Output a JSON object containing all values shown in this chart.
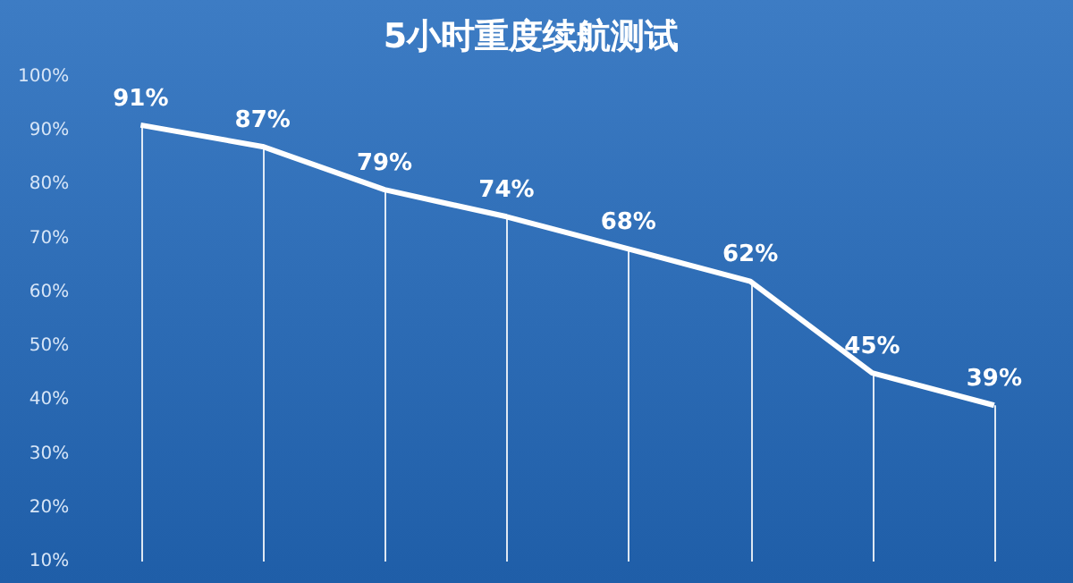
{
  "chart_data": {
    "type": "line",
    "title": "5小时重度续航测试",
    "categories": [
      null,
      null,
      null,
      null,
      null,
      null,
      null,
      null
    ],
    "series": [
      {
        "color": "#ffffff",
        "values": [
          91,
          87,
          79,
          74,
          68,
          62,
          45,
          39
        ],
        "value_labels": [
          "91%",
          "87%",
          "79%",
          "74%",
          "68%",
          "62%",
          "45%",
          "39%"
        ]
      }
    ],
    "ylim": [
      10,
      100
    ],
    "yticks": [
      {
        "value": 10,
        "label": "10%"
      },
      {
        "value": 20,
        "label": "20%"
      },
      {
        "value": 30,
        "label": "30%"
      },
      {
        "value": 40,
        "label": "40%"
      },
      {
        "value": 50,
        "label": "50%"
      },
      {
        "value": 60,
        "label": "60%"
      },
      {
        "value": 70,
        "label": "70%"
      },
      {
        "value": 80,
        "label": "80%"
      },
      {
        "value": 90,
        "label": "90%"
      },
      {
        "value": 100,
        "label": "100%"
      }
    ],
    "tick_labels": "y",
    "grid": "x",
    "legend": false,
    "marker": "none",
    "line_style": "solid"
  }
}
